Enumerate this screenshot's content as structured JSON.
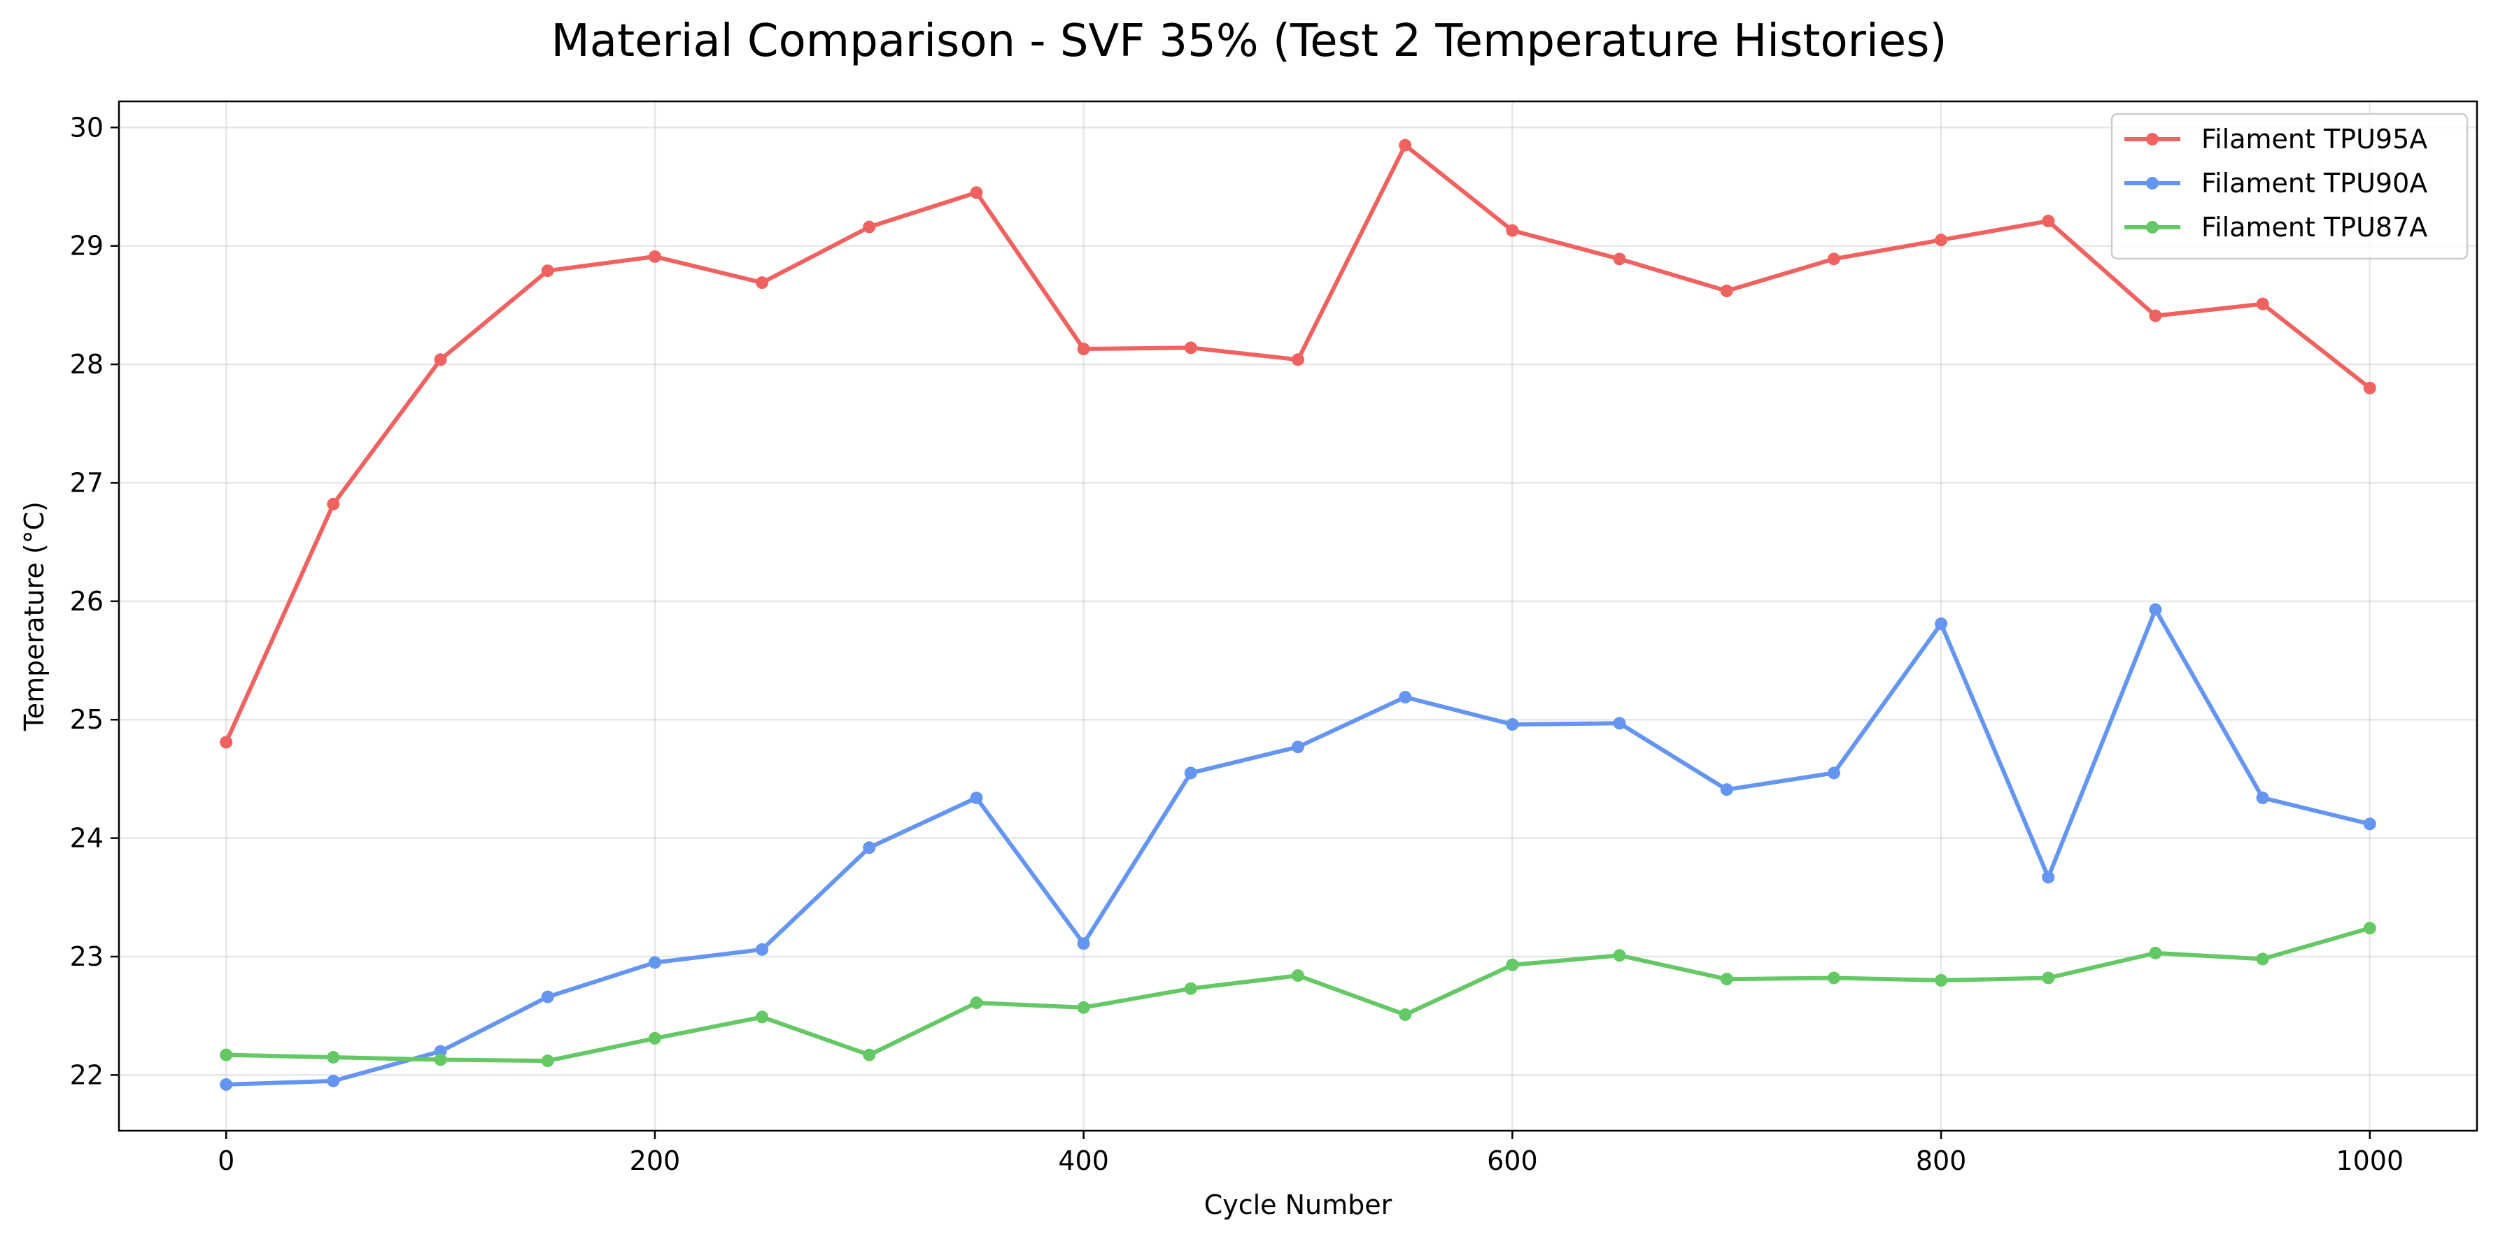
{
  "chart_data": {
    "type": "line",
    "title": "Material Comparison - SVF 35% (Test 2 Temperature Histories)",
    "xlabel": "Cycle Number",
    "ylabel": "Temperature (°C)",
    "xlim": [
      -50,
      1050
    ],
    "ylim": [
      21.53,
      30.22
    ],
    "xticks": [
      0,
      200,
      400,
      600,
      800,
      1000
    ],
    "xtick_labels": [
      "0",
      "200",
      "400",
      "600",
      "800",
      "1000"
    ],
    "yticks": [
      22,
      23,
      24,
      25,
      26,
      27,
      28,
      29,
      30
    ],
    "ytick_labels": [
      "22",
      "23",
      "24",
      "25",
      "26",
      "27",
      "28",
      "29",
      "30"
    ],
    "grid": true,
    "legend_position": "top-right",
    "x": [
      0,
      50,
      100,
      150,
      200,
      250,
      300,
      350,
      400,
      450,
      500,
      550,
      600,
      650,
      700,
      750,
      800,
      850,
      900,
      950,
      1000
    ],
    "series": [
      {
        "name": "Filament TPU95A",
        "color": "#f0625f",
        "values": [
          24.81,
          26.82,
          28.04,
          28.79,
          28.91,
          28.69,
          29.16,
          29.45,
          28.13,
          28.14,
          28.04,
          29.85,
          29.13,
          28.89,
          28.62,
          28.89,
          29.05,
          29.21,
          28.41,
          28.51,
          27.8
        ]
      },
      {
        "name": "Filament TPU90A",
        "color": "#6495f0",
        "values": [
          21.92,
          21.95,
          22.2,
          22.66,
          22.95,
          23.06,
          23.92,
          24.34,
          23.11,
          24.55,
          24.77,
          25.19,
          24.96,
          24.97,
          24.41,
          24.55,
          25.81,
          23.67,
          25.93,
          24.34,
          24.12
        ]
      },
      {
        "name": "Filament TPU87A",
        "color": "#64c864",
        "values": [
          22.17,
          22.15,
          22.13,
          22.12,
          22.31,
          22.49,
          22.17,
          22.61,
          22.57,
          22.73,
          22.84,
          22.51,
          22.93,
          23.01,
          22.81,
          22.82,
          22.8,
          22.82,
          23.03,
          22.98,
          23.24
        ]
      }
    ]
  }
}
